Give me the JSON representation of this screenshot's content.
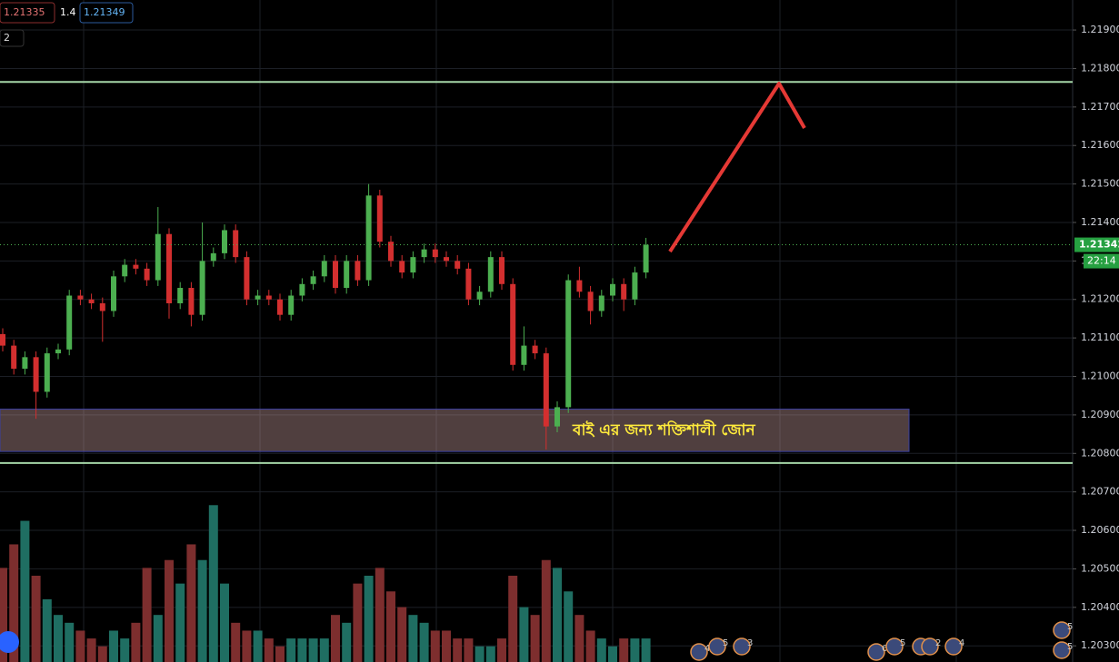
{
  "chart_data": {
    "type": "candlestick",
    "header": {
      "bid": "1.21335",
      "spread": "1.4",
      "ask": "1.21349",
      "indicators_count": "2"
    },
    "open": [
      1.2111,
      1.2108,
      1.2102,
      1.2105,
      1.2096,
      1.2106,
      1.2107,
      1.2121,
      1.212,
      1.2119,
      1.2117,
      1.2126,
      1.2129,
      1.2128,
      1.2125,
      1.2137,
      1.2119,
      1.2123,
      1.2116,
      1.213,
      1.2132,
      1.2138,
      1.2131,
      1.212,
      1.2121,
      1.212,
      1.2116,
      1.2121,
      1.2124,
      1.2126,
      1.213,
      1.2123,
      1.213,
      1.2125,
      1.2147,
      1.2135,
      1.213,
      1.2127,
      1.2131,
      1.2133,
      1.2131,
      1.213,
      1.2128,
      1.212,
      1.2122,
      1.2131,
      1.2124,
      1.2103,
      1.2108,
      1.2106,
      1.2087,
      1.2092,
      1.2125,
      1.2122,
      1.2117,
      1.2121,
      1.2124,
      1.212,
      1.2127
    ],
    "high": [
      1.21125,
      1.21095,
      1.21065,
      1.21065,
      1.21075,
      1.21085,
      1.21225,
      1.21225,
      1.21215,
      1.21205,
      1.21275,
      1.21305,
      1.21305,
      1.21295,
      1.2144,
      1.21385,
      1.21245,
      1.21245,
      1.214,
      1.21335,
      1.21395,
      1.21395,
      1.21325,
      1.21225,
      1.21225,
      1.21215,
      1.21225,
      1.21255,
      1.21275,
      1.21315,
      1.21315,
      1.21315,
      1.21315,
      1.215,
      1.21485,
      1.21365,
      1.21315,
      1.21325,
      1.21345,
      1.21345,
      1.21325,
      1.21315,
      1.21295,
      1.21235,
      1.21325,
      1.21325,
      1.21255,
      1.2113,
      1.21095,
      1.21075,
      1.20935,
      1.21265,
      1.21285,
      1.21235,
      1.21225,
      1.21255,
      1.21255,
      1.21285,
      1.2136
    ],
    "low": [
      1.21065,
      1.21005,
      1.21005,
      1.2089,
      1.20945,
      1.21045,
      1.21055,
      1.21185,
      1.21175,
      1.2109,
      1.21155,
      1.21245,
      1.21265,
      1.21235,
      1.21235,
      1.2115,
      1.21175,
      1.2113,
      1.21145,
      1.21285,
      1.21305,
      1.21295,
      1.21185,
      1.21185,
      1.21185,
      1.21145,
      1.21145,
      1.21195,
      1.21225,
      1.21245,
      1.21215,
      1.21215,
      1.21235,
      1.21235,
      1.21335,
      1.21285,
      1.21255,
      1.21255,
      1.21295,
      1.21295,
      1.21285,
      1.21265,
      1.21185,
      1.21185,
      1.21205,
      1.21225,
      1.21015,
      1.21015,
      1.21045,
      1.2081,
      1.20855,
      1.20905,
      1.21205,
      1.21135,
      1.21155,
      1.21195,
      1.2117,
      1.21185,
      1.21255
    ],
    "close": [
      1.2108,
      1.2102,
      1.2105,
      1.2096,
      1.2106,
      1.2107,
      1.2121,
      1.212,
      1.2119,
      1.2117,
      1.2126,
      1.2129,
      1.2128,
      1.2125,
      1.2137,
      1.2119,
      1.2123,
      1.2116,
      1.213,
      1.2132,
      1.2138,
      1.2131,
      1.212,
      1.2121,
      1.212,
      1.2116,
      1.2121,
      1.2124,
      1.2126,
      1.213,
      1.2123,
      1.213,
      1.2125,
      1.2147,
      1.2135,
      1.213,
      1.2127,
      1.2131,
      1.2133,
      1.2131,
      1.213,
      1.2128,
      1.212,
      1.2122,
      1.2131,
      1.2124,
      1.2103,
      1.2108,
      1.2106,
      1.2087,
      1.2092,
      1.2125,
      1.2122,
      1.2117,
      1.2121,
      1.2124,
      1.212,
      1.2127,
      1.21342
    ],
    "volume": [
      60,
      75,
      90,
      55,
      40,
      30,
      25,
      20,
      15,
      10,
      20,
      15,
      25,
      60,
      30,
      65,
      50,
      75,
      65,
      100,
      50,
      25,
      20,
      20,
      15,
      10,
      15,
      15,
      15,
      15,
      30,
      25,
      50,
      55,
      60,
      45,
      35,
      30,
      25,
      20,
      20,
      15,
      15,
      10,
      10,
      15,
      55,
      35,
      30,
      65,
      60,
      45,
      30,
      20,
      15,
      10,
      15,
      15,
      15
    ],
    "vlim": [
      0,
      110
    ],
    "up_color": "#4caf50",
    "down_color": "#d32f2f",
    "volume_up_color": "#1f6e62",
    "volume_down_color": "#7d2e2e",
    "ylim": [
      1.20258,
      1.21978
    ],
    "yticks": [
      {
        "value": 1.219,
        "label": "1.21900"
      },
      {
        "value": 1.218,
        "label": "1.21800"
      },
      {
        "value": 1.217,
        "label": "1.21700"
      },
      {
        "value": 1.216,
        "label": "1.21600"
      },
      {
        "value": 1.215,
        "label": "1.21500"
      },
      {
        "value": 1.214,
        "label": "1.21400"
      },
      {
        "value": 1.213,
        "label": "1.21300"
      },
      {
        "value": 1.212,
        "label": "1.21200"
      },
      {
        "value": 1.211,
        "label": "1.21100"
      },
      {
        "value": 1.21,
        "label": "1.21000"
      },
      {
        "value": 1.209,
        "label": "1.20900"
      },
      {
        "value": 1.208,
        "label": "1.20800"
      },
      {
        "value": 1.207,
        "label": "1.20700"
      },
      {
        "value": 1.206,
        "label": "1.20600"
      },
      {
        "value": 1.205,
        "label": "1.20500"
      },
      {
        "value": 1.204,
        "label": "1.20400"
      },
      {
        "value": 1.203,
        "label": "1.20300"
      }
    ],
    "grid": true,
    "levels": [
      1.21765,
      1.20775
    ],
    "zone": {
      "top": 1.20915,
      "bottom": 1.20805,
      "label": "বাই এর জন্য শক্তিশালী জোন"
    },
    "price_marker": {
      "value": 1.21342,
      "label": "1.21342"
    },
    "countdown": "22:14",
    "events": [
      "4",
      "5",
      "3",
      "6",
      "5",
      "8",
      "2",
      "4",
      "5",
      "5"
    ]
  }
}
